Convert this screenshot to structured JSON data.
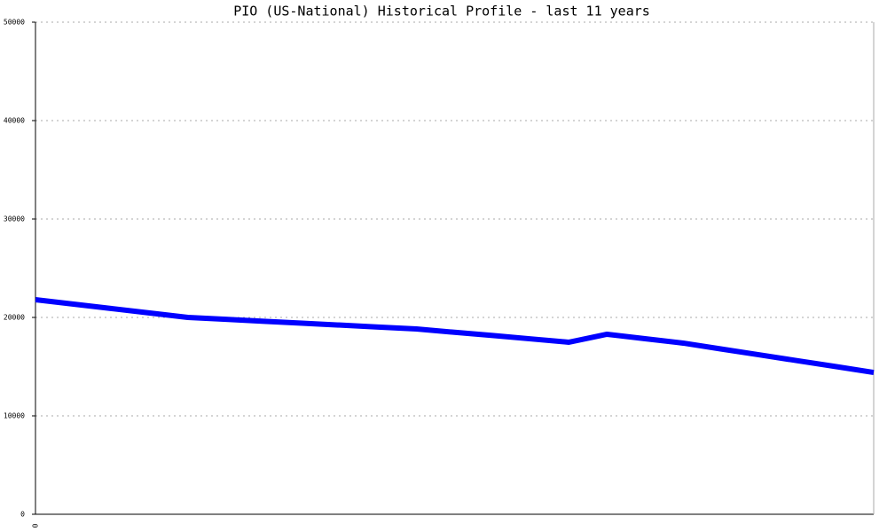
{
  "chart_data": {
    "type": "line",
    "title": "PIO (US-National) Historical Profile - last 11 years",
    "categories": [
      "0",
      null,
      null,
      null,
      null,
      null,
      null,
      null,
      null,
      null,
      null,
      null,
      null,
      null,
      null,
      null,
      null,
      null,
      null,
      null,
      null,
      null,
      null
    ],
    "series": [
      {
        "name": "PIO",
        "color": "#0000ff",
        "values": [
          21800,
          21350,
          20900,
          20450,
          20000,
          19805,
          19610,
          19415,
          19220,
          19025,
          18830,
          18490,
          18160,
          17820,
          17480,
          18290,
          17840,
          17390,
          16790,
          16200,
          15600,
          15010,
          14410
        ]
      }
    ],
    "ylim": [
      0,
      50000
    ],
    "yticks": [
      0,
      10000,
      20000,
      30000,
      40000,
      50000
    ],
    "grid": true
  }
}
